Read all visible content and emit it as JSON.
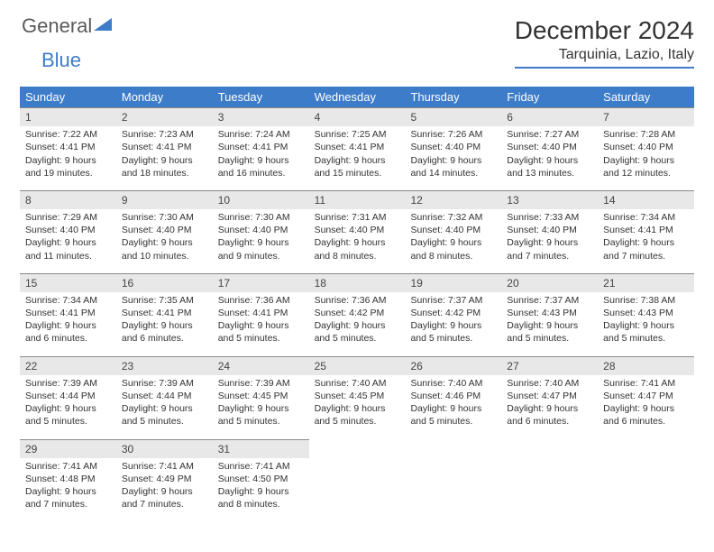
{
  "logo": {
    "text1": "General",
    "text2": "Blue"
  },
  "title": "December 2024",
  "location": "Tarquinia, Lazio, Italy",
  "weekdays": [
    "Sunday",
    "Monday",
    "Tuesday",
    "Wednesday",
    "Thursday",
    "Friday",
    "Saturday"
  ],
  "colors": {
    "accent": "#3d7cc9",
    "daynum_bg": "#e8e8e8",
    "text": "#333333"
  },
  "weeks": [
    [
      {
        "n": "1",
        "sr": "7:22 AM",
        "ss": "4:41 PM",
        "dl": "9 hours and 19 minutes."
      },
      {
        "n": "2",
        "sr": "7:23 AM",
        "ss": "4:41 PM",
        "dl": "9 hours and 18 minutes."
      },
      {
        "n": "3",
        "sr": "7:24 AM",
        "ss": "4:41 PM",
        "dl": "9 hours and 16 minutes."
      },
      {
        "n": "4",
        "sr": "7:25 AM",
        "ss": "4:41 PM",
        "dl": "9 hours and 15 minutes."
      },
      {
        "n": "5",
        "sr": "7:26 AM",
        "ss": "4:40 PM",
        "dl": "9 hours and 14 minutes."
      },
      {
        "n": "6",
        "sr": "7:27 AM",
        "ss": "4:40 PM",
        "dl": "9 hours and 13 minutes."
      },
      {
        "n": "7",
        "sr": "7:28 AM",
        "ss": "4:40 PM",
        "dl": "9 hours and 12 minutes."
      }
    ],
    [
      {
        "n": "8",
        "sr": "7:29 AM",
        "ss": "4:40 PM",
        "dl": "9 hours and 11 minutes."
      },
      {
        "n": "9",
        "sr": "7:30 AM",
        "ss": "4:40 PM",
        "dl": "9 hours and 10 minutes."
      },
      {
        "n": "10",
        "sr": "7:30 AM",
        "ss": "4:40 PM",
        "dl": "9 hours and 9 minutes."
      },
      {
        "n": "11",
        "sr": "7:31 AM",
        "ss": "4:40 PM",
        "dl": "9 hours and 8 minutes."
      },
      {
        "n": "12",
        "sr": "7:32 AM",
        "ss": "4:40 PM",
        "dl": "9 hours and 8 minutes."
      },
      {
        "n": "13",
        "sr": "7:33 AM",
        "ss": "4:40 PM",
        "dl": "9 hours and 7 minutes."
      },
      {
        "n": "14",
        "sr": "7:34 AM",
        "ss": "4:41 PM",
        "dl": "9 hours and 7 minutes."
      }
    ],
    [
      {
        "n": "15",
        "sr": "7:34 AM",
        "ss": "4:41 PM",
        "dl": "9 hours and 6 minutes."
      },
      {
        "n": "16",
        "sr": "7:35 AM",
        "ss": "4:41 PM",
        "dl": "9 hours and 6 minutes."
      },
      {
        "n": "17",
        "sr": "7:36 AM",
        "ss": "4:41 PM",
        "dl": "9 hours and 5 minutes."
      },
      {
        "n": "18",
        "sr": "7:36 AM",
        "ss": "4:42 PM",
        "dl": "9 hours and 5 minutes."
      },
      {
        "n": "19",
        "sr": "7:37 AM",
        "ss": "4:42 PM",
        "dl": "9 hours and 5 minutes."
      },
      {
        "n": "20",
        "sr": "7:37 AM",
        "ss": "4:43 PM",
        "dl": "9 hours and 5 minutes."
      },
      {
        "n": "21",
        "sr": "7:38 AM",
        "ss": "4:43 PM",
        "dl": "9 hours and 5 minutes."
      }
    ],
    [
      {
        "n": "22",
        "sr": "7:39 AM",
        "ss": "4:44 PM",
        "dl": "9 hours and 5 minutes."
      },
      {
        "n": "23",
        "sr": "7:39 AM",
        "ss": "4:44 PM",
        "dl": "9 hours and 5 minutes."
      },
      {
        "n": "24",
        "sr": "7:39 AM",
        "ss": "4:45 PM",
        "dl": "9 hours and 5 minutes."
      },
      {
        "n": "25",
        "sr": "7:40 AM",
        "ss": "4:45 PM",
        "dl": "9 hours and 5 minutes."
      },
      {
        "n": "26",
        "sr": "7:40 AM",
        "ss": "4:46 PM",
        "dl": "9 hours and 5 minutes."
      },
      {
        "n": "27",
        "sr": "7:40 AM",
        "ss": "4:47 PM",
        "dl": "9 hours and 6 minutes."
      },
      {
        "n": "28",
        "sr": "7:41 AM",
        "ss": "4:47 PM",
        "dl": "9 hours and 6 minutes."
      }
    ],
    [
      {
        "n": "29",
        "sr": "7:41 AM",
        "ss": "4:48 PM",
        "dl": "9 hours and 7 minutes."
      },
      {
        "n": "30",
        "sr": "7:41 AM",
        "ss": "4:49 PM",
        "dl": "9 hours and 7 minutes."
      },
      {
        "n": "31",
        "sr": "7:41 AM",
        "ss": "4:50 PM",
        "dl": "9 hours and 8 minutes."
      },
      {
        "empty": true
      },
      {
        "empty": true
      },
      {
        "empty": true
      },
      {
        "empty": true
      }
    ]
  ],
  "labels": {
    "sunrise": "Sunrise:",
    "sunset": "Sunset:",
    "daylight": "Daylight:"
  }
}
